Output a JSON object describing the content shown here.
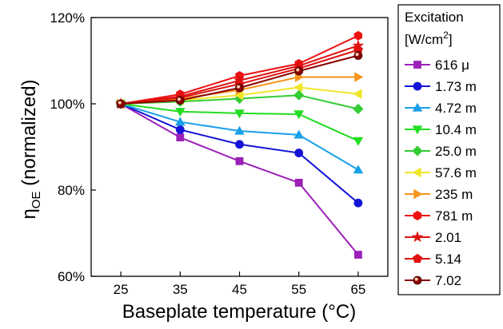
{
  "chart_data": {
    "type": "line",
    "x": [
      25,
      35,
      45,
      55,
      65
    ],
    "x_ticks": [
      "25",
      "35",
      "45",
      "55",
      "65"
    ],
    "xlim": [
      20,
      70
    ],
    "y_ticks": [
      {
        "value": 60,
        "label": "60%"
      },
      {
        "value": 80,
        "label": "80%"
      },
      {
        "value": 100,
        "label": "100%"
      },
      {
        "value": 120,
        "label": "120%"
      }
    ],
    "ylim": [
      60,
      120
    ],
    "xlabel": "Baseplate temperature (°C)",
    "ylabel": {
      "base": "η",
      "sub": "OE",
      "rest": " (normalized)"
    },
    "grid": false,
    "legend": {
      "placement": "right-outside",
      "title_line1": "Excitation",
      "title_line2_pre": "[W/cm",
      "title_line2_sup": "2",
      "title_line2_post": "]"
    },
    "series": [
      {
        "name": "616 μ",
        "color": "#9b1fb8",
        "marker": "square",
        "values": [
          100,
          92.2,
          86.7,
          81.7,
          65.0
        ]
      },
      {
        "name": "1.73 m",
        "color": "#1414d8",
        "marker": "circle",
        "values": [
          100,
          94.0,
          90.6,
          88.6,
          77.0
        ]
      },
      {
        "name": "4.72 m",
        "color": "#1aa0e8",
        "marker": "triangle-up",
        "values": [
          100,
          95.8,
          93.7,
          92.8,
          84.7
        ]
      },
      {
        "name": "10.4 m",
        "color": "#22dd22",
        "marker": "triangle-down",
        "values": [
          100,
          98.2,
          97.8,
          97.6,
          91.4
        ]
      },
      {
        "name": "25.0 m",
        "color": "#33cc33",
        "marker": "diamond",
        "values": [
          100,
          100.5,
          101.2,
          102.0,
          98.8
        ]
      },
      {
        "name": "57.6 m",
        "color": "#f0e62a",
        "marker": "triangle-left",
        "values": [
          100,
          100.8,
          102.0,
          103.8,
          102.3
        ]
      },
      {
        "name": "235 m",
        "color": "#f7941d",
        "marker": "triangle-right",
        "values": [
          100,
          101.2,
          103.2,
          106.2,
          106.2
        ]
      },
      {
        "name": "781 m",
        "color": "#ee1111",
        "marker": "hexagon",
        "values": [
          100,
          102.2,
          106.5,
          109.3,
          115.8
        ]
      },
      {
        "name": "2.01",
        "color": "#dd1111",
        "marker": "star",
        "values": [
          100,
          101.7,
          105.4,
          108.8,
          113.5
        ]
      },
      {
        "name": "5.14",
        "color": "#e01010",
        "marker": "pentagon",
        "values": [
          100,
          101.4,
          104.6,
          108.2,
          112.5
        ]
      },
      {
        "name": "7.02",
        "color": "#8b0000",
        "marker": "sphere",
        "values": [
          100,
          100.8,
          103.7,
          107.6,
          111.2
        ]
      }
    ]
  }
}
